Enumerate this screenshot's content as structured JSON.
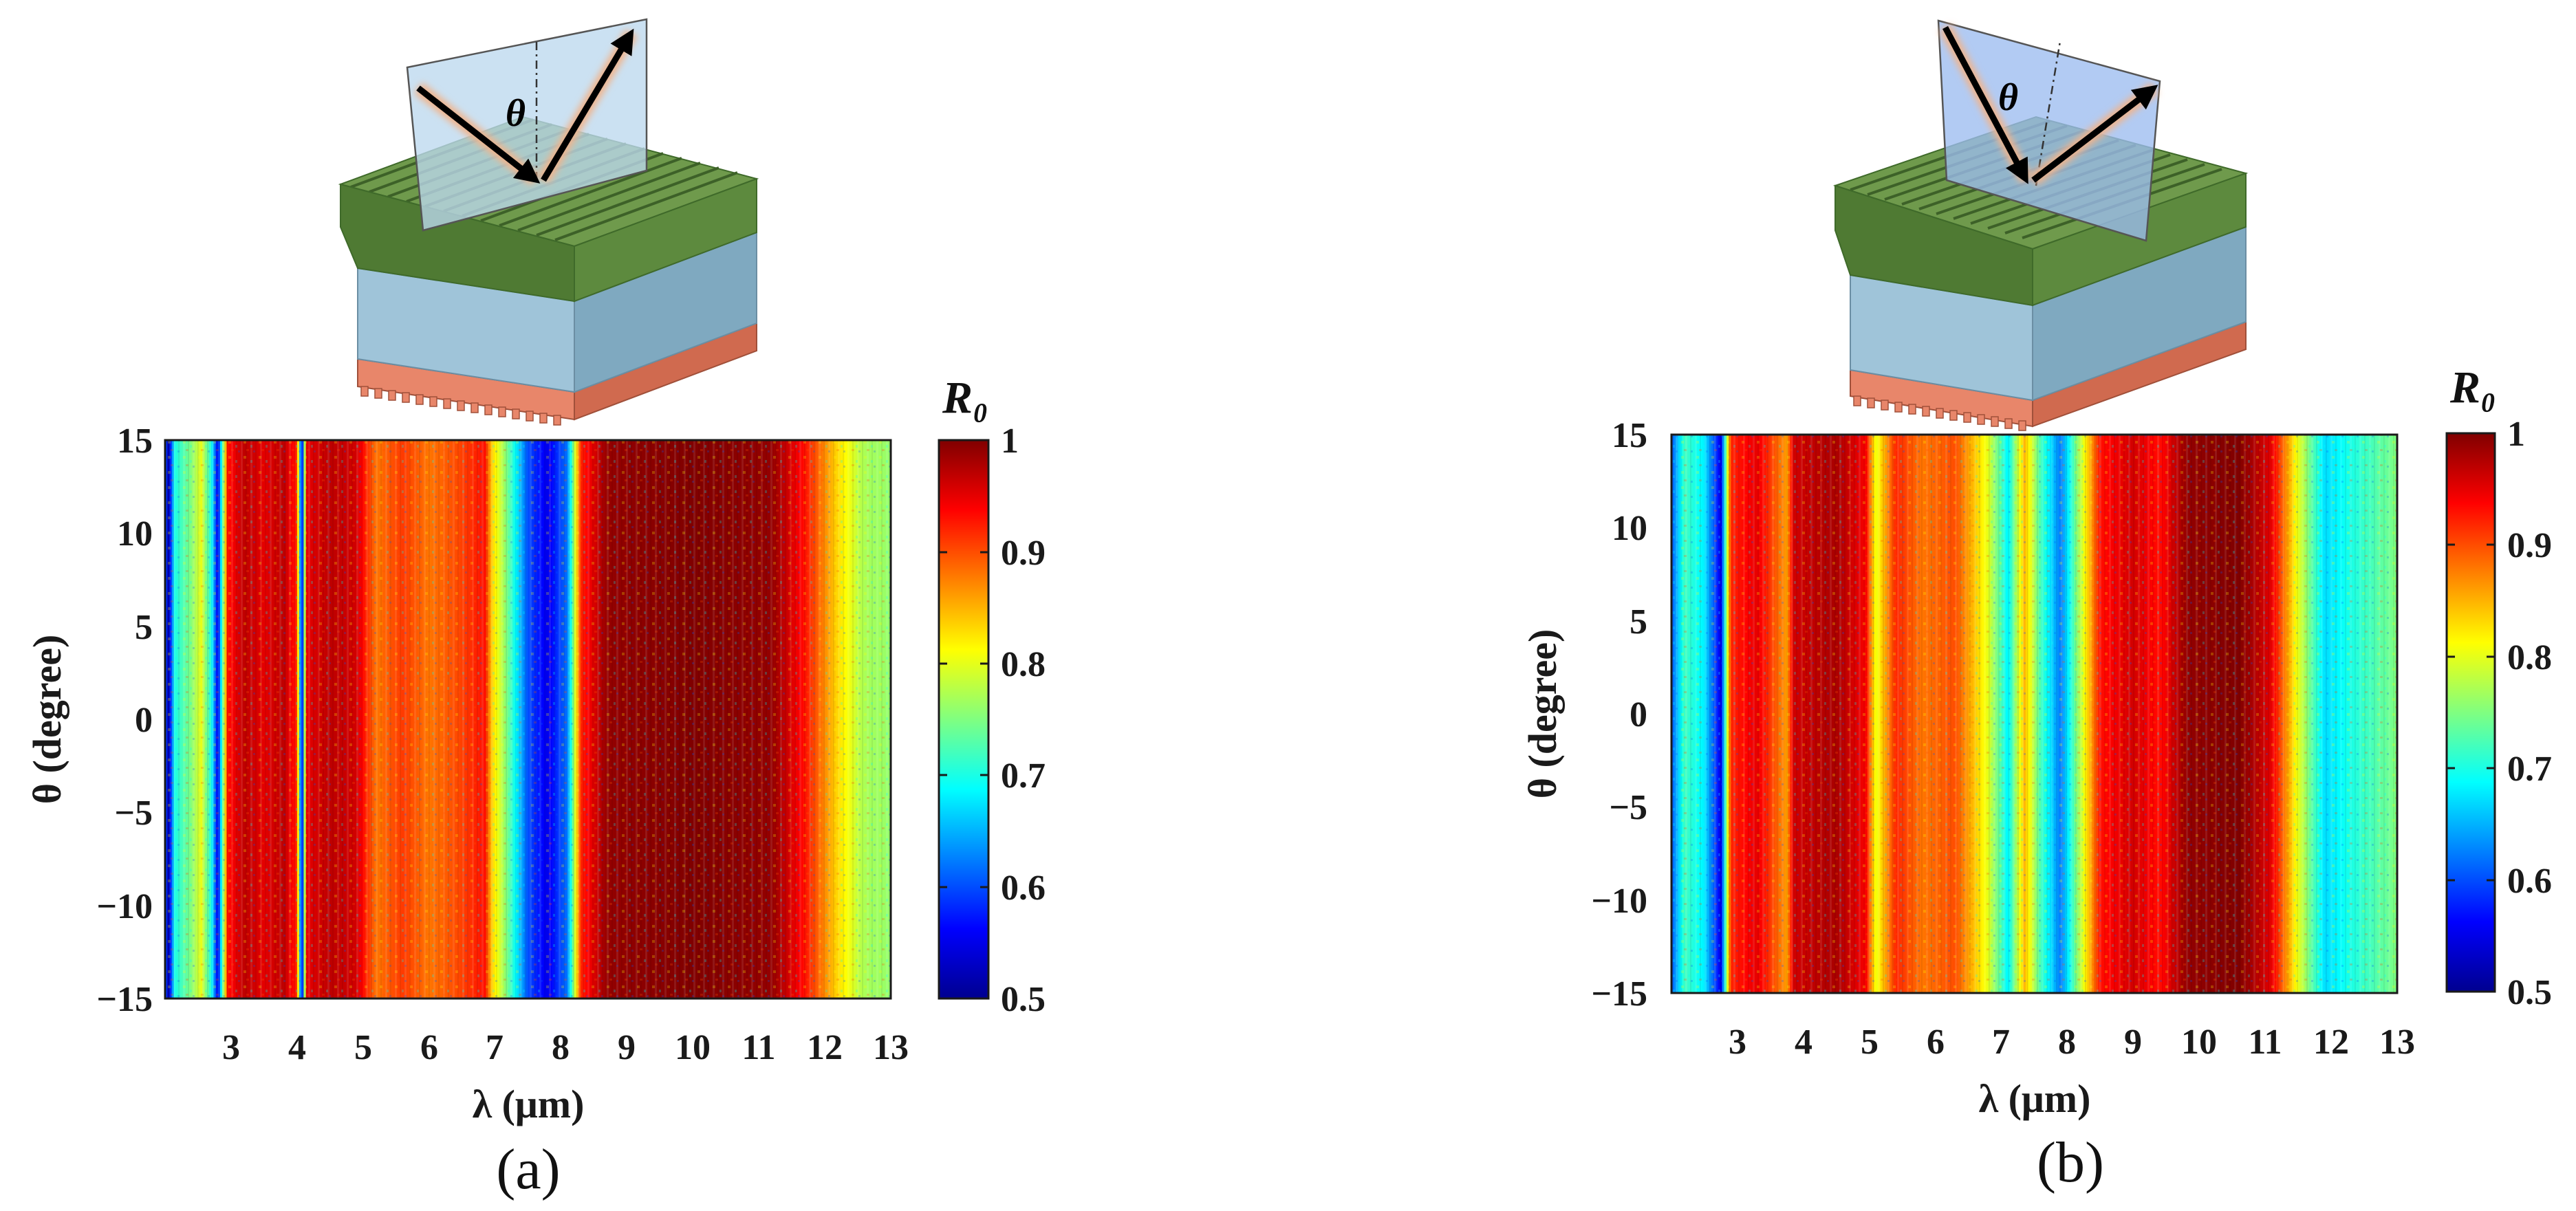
{
  "chart_data": [
    {
      "type": "heatmap",
      "panel_label": "(a)",
      "xlabel": "λ (μm)",
      "ylabel": "θ (degree)",
      "xlim": [
        2.0,
        13.0
      ],
      "ylim": [
        -15,
        15
      ],
      "x_ticks": [
        "3",
        "4",
        "5",
        "6",
        "7",
        "8",
        "9",
        "10",
        "11",
        "12",
        "13"
      ],
      "y_ticks": [
        "15",
        "10",
        "5",
        "0",
        "−5",
        "−10",
        "−15"
      ],
      "colorbar": {
        "title": "R₀",
        "ticks": [
          "1",
          "0.9",
          "0.8",
          "0.7",
          "0.6",
          "0.5"
        ],
        "range": [
          0.5,
          1.0
        ]
      },
      "schematic_angle_label": "θ",
      "reflectance_profile": [
        {
          "lambda": 2.0,
          "R": 0.62
        },
        {
          "lambda": 2.05,
          "R": 0.52
        },
        {
          "lambda": 2.15,
          "R": 0.7
        },
        {
          "lambda": 2.35,
          "R": 0.74
        },
        {
          "lambda": 2.55,
          "R": 0.8
        },
        {
          "lambda": 2.7,
          "R": 0.7
        },
        {
          "lambda": 2.8,
          "R": 0.55
        },
        {
          "lambda": 2.95,
          "R": 0.93
        },
        {
          "lambda": 3.2,
          "R": 0.97
        },
        {
          "lambda": 3.5,
          "R": 0.95
        },
        {
          "lambda": 3.8,
          "R": 0.97
        },
        {
          "lambda": 4.0,
          "R": 0.92
        },
        {
          "lambda": 4.07,
          "R": 0.52
        },
        {
          "lambda": 4.15,
          "R": 0.95
        },
        {
          "lambda": 4.5,
          "R": 0.97
        },
        {
          "lambda": 4.9,
          "R": 0.96
        },
        {
          "lambda": 5.2,
          "R": 0.88
        },
        {
          "lambda": 5.6,
          "R": 0.91
        },
        {
          "lambda": 6.0,
          "R": 0.88
        },
        {
          "lambda": 6.4,
          "R": 0.9
        },
        {
          "lambda": 6.85,
          "R": 0.93
        },
        {
          "lambda": 6.95,
          "R": 0.84
        },
        {
          "lambda": 7.2,
          "R": 0.74
        },
        {
          "lambda": 7.5,
          "R": 0.6
        },
        {
          "lambda": 7.8,
          "R": 0.55
        },
        {
          "lambda": 8.1,
          "R": 0.62
        },
        {
          "lambda": 8.3,
          "R": 0.92
        },
        {
          "lambda": 8.7,
          "R": 0.99
        },
        {
          "lambda": 10.0,
          "R": 1.0
        },
        {
          "lambda": 11.2,
          "R": 0.99
        },
        {
          "lambda": 11.7,
          "R": 0.93
        },
        {
          "lambda": 12.2,
          "R": 0.83
        },
        {
          "lambda": 12.6,
          "R": 0.77
        },
        {
          "lambda": 13.0,
          "R": 0.76
        }
      ]
    },
    {
      "type": "heatmap",
      "panel_label": "(b)",
      "xlabel": "λ (μm)",
      "ylabel": "θ (degree)",
      "xlim": [
        2.0,
        13.0
      ],
      "ylim": [
        -15,
        15
      ],
      "x_ticks": [
        "3",
        "4",
        "5",
        "6",
        "7",
        "8",
        "9",
        "10",
        "11",
        "12",
        "13"
      ],
      "y_ticks": [
        "15",
        "10",
        "5",
        "0",
        "−5",
        "−10",
        "−15"
      ],
      "colorbar": {
        "title": "R₀",
        "ticks": [
          "1",
          "0.9",
          "0.8",
          "0.7",
          "0.6",
          "0.5"
        ],
        "range": [
          0.5,
          1.0
        ]
      },
      "schematic_angle_label": "θ",
      "reflectance_profile": [
        {
          "lambda": 2.0,
          "R": 0.6
        },
        {
          "lambda": 2.2,
          "R": 0.72
        },
        {
          "lambda": 2.5,
          "R": 0.68
        },
        {
          "lambda": 2.75,
          "R": 0.55
        },
        {
          "lambda": 2.9,
          "R": 0.92
        },
        {
          "lambda": 3.3,
          "R": 0.95
        },
        {
          "lambda": 3.75,
          "R": 0.86
        },
        {
          "lambda": 3.85,
          "R": 0.96
        },
        {
          "lambda": 4.5,
          "R": 0.98
        },
        {
          "lambda": 4.95,
          "R": 0.94
        },
        {
          "lambda": 5.1,
          "R": 0.8
        },
        {
          "lambda": 5.4,
          "R": 0.92
        },
        {
          "lambda": 5.8,
          "R": 0.88
        },
        {
          "lambda": 6.3,
          "R": 0.9
        },
        {
          "lambda": 6.8,
          "R": 0.8
        },
        {
          "lambda": 7.1,
          "R": 0.68
        },
        {
          "lambda": 7.35,
          "R": 0.85
        },
        {
          "lambda": 7.6,
          "R": 0.72
        },
        {
          "lambda": 7.9,
          "R": 0.62
        },
        {
          "lambda": 8.2,
          "R": 0.78
        },
        {
          "lambda": 8.5,
          "R": 0.93
        },
        {
          "lambda": 9.0,
          "R": 0.96
        },
        {
          "lambda": 9.4,
          "R": 0.93
        },
        {
          "lambda": 9.8,
          "R": 0.99
        },
        {
          "lambda": 10.6,
          "R": 1.0
        },
        {
          "lambda": 11.1,
          "R": 0.95
        },
        {
          "lambda": 11.5,
          "R": 0.8
        },
        {
          "lambda": 11.9,
          "R": 0.67
        },
        {
          "lambda": 12.3,
          "R": 0.7
        },
        {
          "lambda": 13.0,
          "R": 0.75
        }
      ]
    }
  ],
  "colors": {
    "frame": "#1a1a1a",
    "grating_top": "#6f9a4c",
    "grating_front": "#4f7a33",
    "grating_side": "#5d8a3e",
    "spacer": "#9fc4d9",
    "spacer_dark": "#7fa9c0",
    "substrate": "#e8866a",
    "substrate_dark": "#d06a4f",
    "plane_a": "#bcd9ee",
    "plane_b": "#9cbcf0",
    "glow": "#f0b48c"
  }
}
